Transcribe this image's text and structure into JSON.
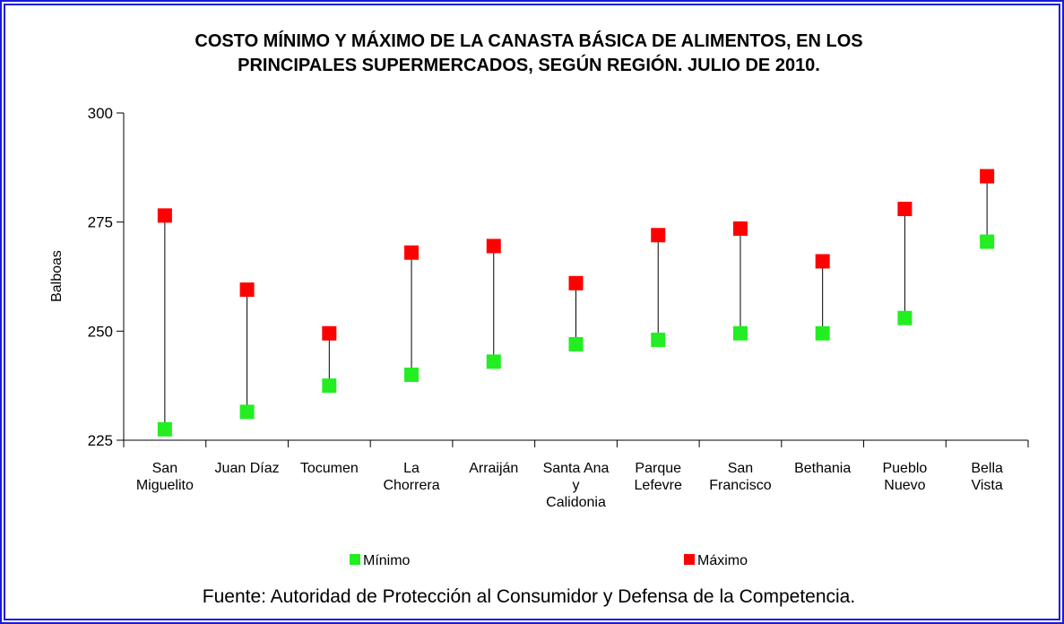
{
  "chart_data": {
    "type": "range",
    "title": "COSTO MÍNIMO Y MÁXIMO DE LA CANASTA BÁSICA DE ALIMENTOS, EN LOS\nPRINCIPALES SUPERMERCADOS, SEGÚN REGIÓN.  JULIO DE 2010.",
    "y_label": "Balboas",
    "source": "Fuente: Autoridad de Protección al Consumidor y Defensa de la Competencia.",
    "categories": [
      "San\nMiguelito",
      "Juan Díaz",
      "Tocumen",
      "La\nChorrera",
      "Arraiján",
      "Santa Ana\ny\nCalidonia",
      "Parque\nLefevre",
      "San\nFrancisco",
      "Bethania",
      "Pueblo\nNuevo",
      "Bella\nVista"
    ],
    "series": [
      {
        "name": "Mínimo",
        "color": "#22ee22",
        "values": [
          227.5,
          231.5,
          237.5,
          240,
          243,
          247,
          248,
          249.5,
          249.5,
          253,
          270.5
        ]
      },
      {
        "name": "Máximo",
        "color": "#ff0000",
        "values": [
          276.5,
          259.5,
          249.5,
          268,
          269.5,
          261,
          272,
          273.5,
          266,
          278,
          285.5
        ]
      }
    ],
    "ylim": [
      225,
      300
    ],
    "yticks": [
      225,
      250,
      275,
      300
    ]
  }
}
